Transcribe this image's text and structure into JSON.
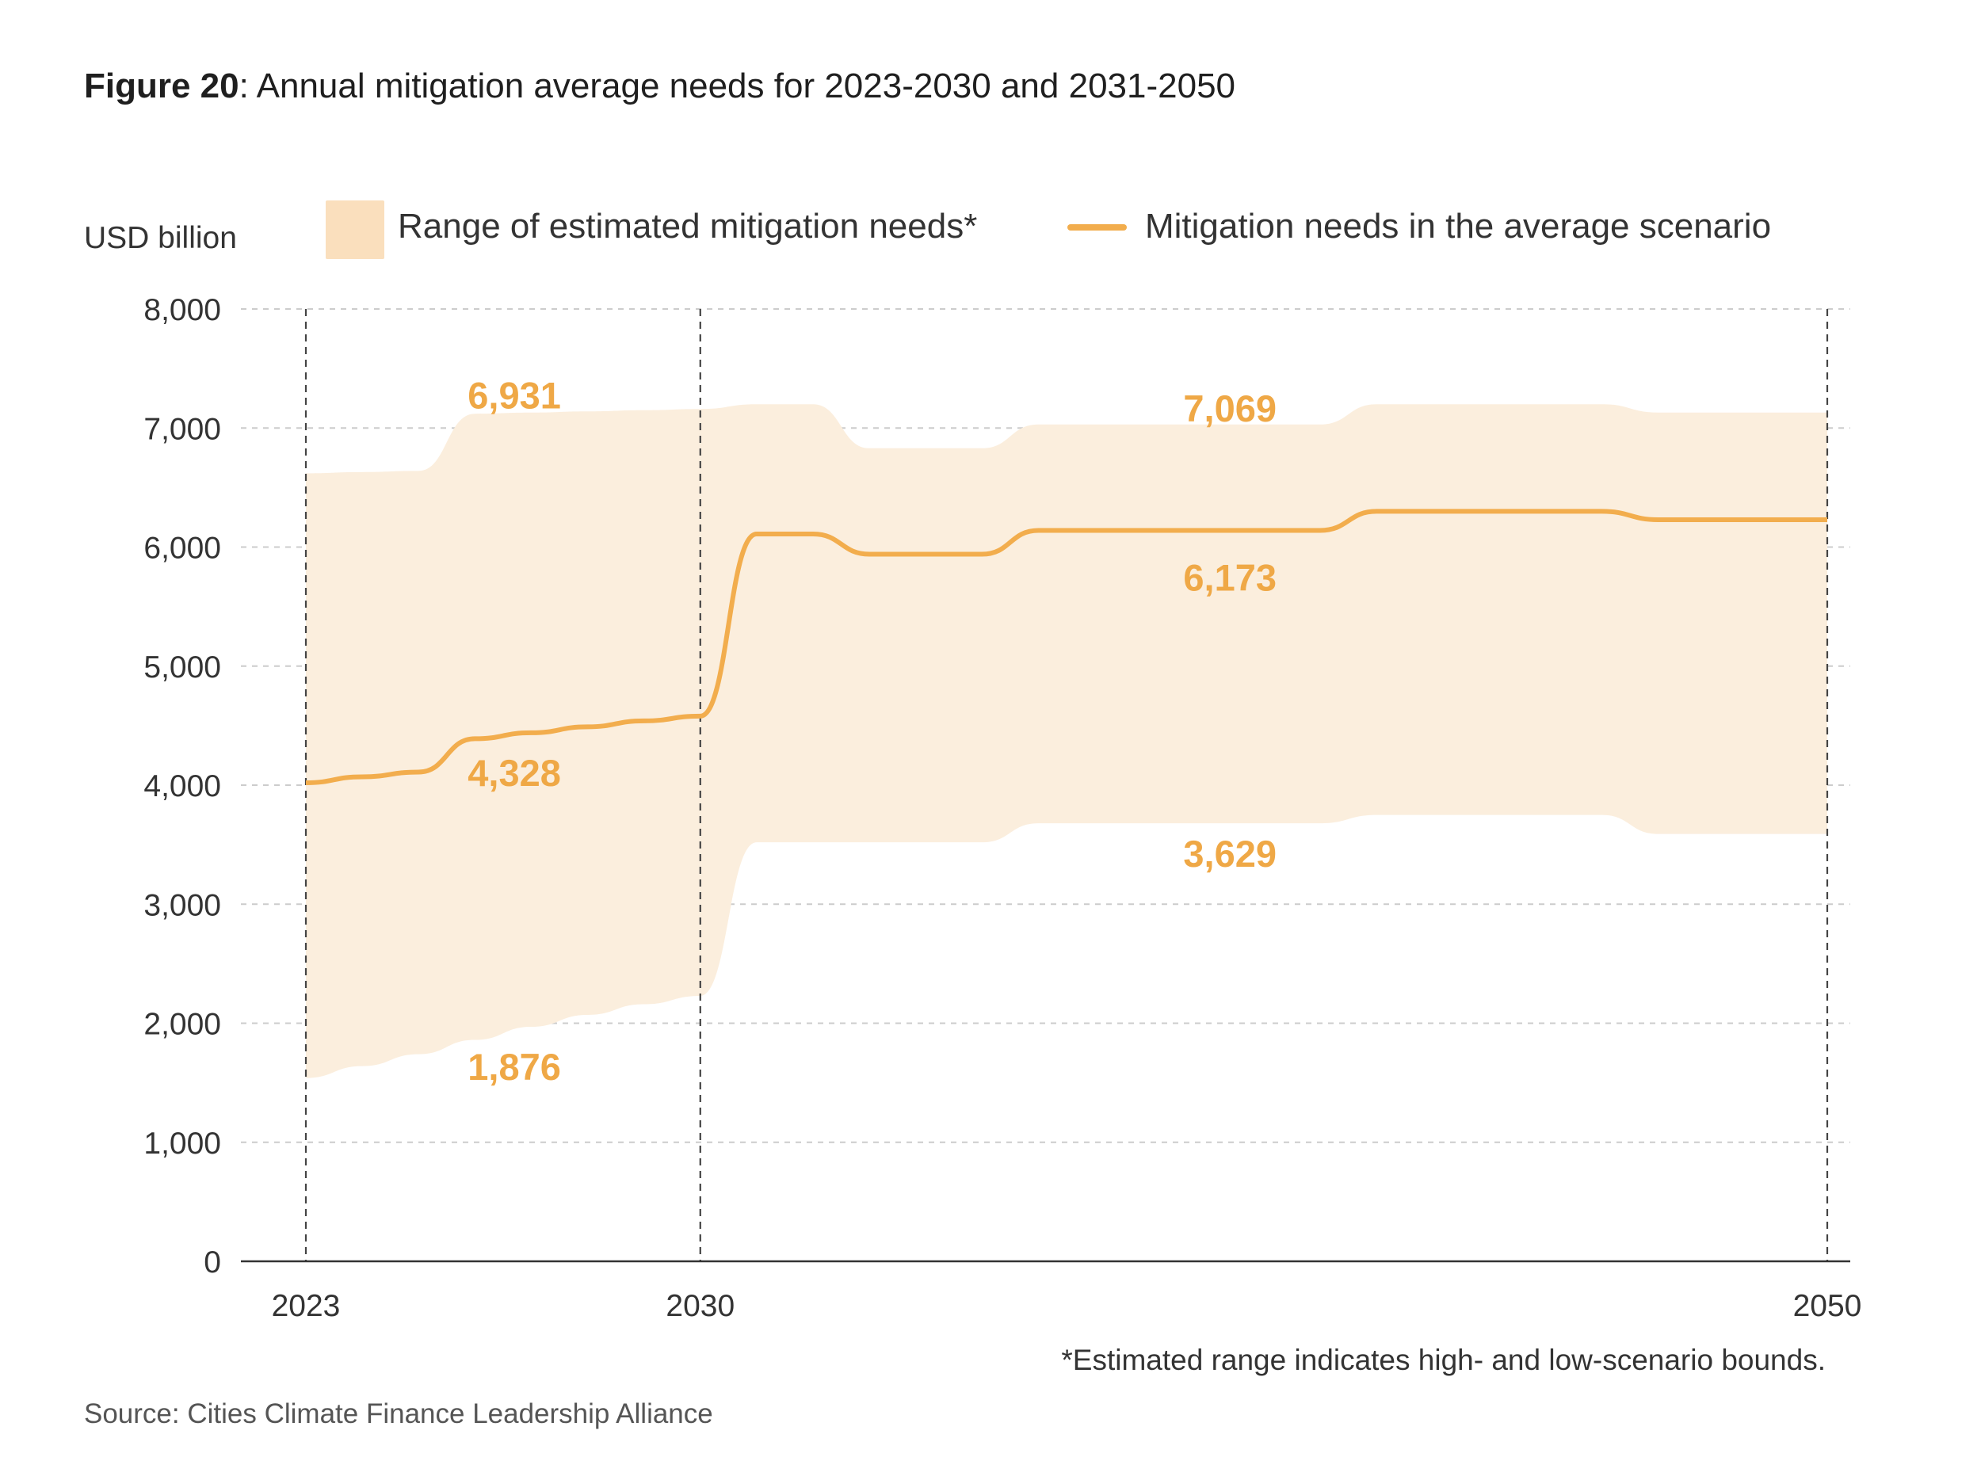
{
  "title": {
    "prefix": "Figure 20",
    "text": ": Annual mitigation average needs for 2023-2030 and 2031-2050"
  },
  "footnote": "*Estimated range indicates high- and low-scenario bounds.",
  "source": "Source: Cities Climate Finance Leadership Alliance",
  "colors": {
    "band": "#fbeedd",
    "legend_band": "#fadfbd",
    "line": "#f2ad4d",
    "label": "#efa846",
    "grid": "#cccccc",
    "axis": "#333333"
  },
  "chart_data": {
    "type": "area",
    "ylabel": "USD billion",
    "ylim": [
      0,
      8000
    ],
    "xlim": [
      2023,
      2050
    ],
    "y_ticks": [
      {
        "value": 0,
        "label": "0"
      },
      {
        "value": 1000,
        "label": "1,000"
      },
      {
        "value": 2000,
        "label": "2,000"
      },
      {
        "value": 3000,
        "label": "3,000"
      },
      {
        "value": 4000,
        "label": "4,000"
      },
      {
        "value": 5000,
        "label": "5,000"
      },
      {
        "value": 6000,
        "label": "6,000"
      },
      {
        "value": 7000,
        "label": "7,000"
      },
      {
        "value": 8000,
        "label": "8,000"
      }
    ],
    "x_ticks": [
      {
        "value": 2023,
        "label": "2023"
      },
      {
        "value": 2030,
        "label": "2030"
      },
      {
        "value": 2050,
        "label": "2050"
      }
    ],
    "grid": true,
    "legend": {
      "placement": "top",
      "band_label": "Range of estimated mitigation needs*",
      "line_label": "Mitigation needs in the average scenario"
    },
    "series": [
      {
        "name": "Range of estimated mitigation needs*",
        "kind": "band",
        "x": [
          2023,
          2024,
          2025,
          2026,
          2027,
          2028,
          2029,
          2030,
          2031,
          2032,
          2033,
          2034,
          2035,
          2036,
          2037,
          2038,
          2039,
          2040,
          2041,
          2042,
          2043,
          2044,
          2045,
          2046,
          2047,
          2048,
          2049,
          2050
        ],
        "high": [
          6620,
          6630,
          6640,
          7120,
          7130,
          7140,
          7150,
          7160,
          7200,
          7200,
          6830,
          6830,
          6830,
          7030,
          7030,
          7030,
          7030,
          7030,
          7030,
          7200,
          7200,
          7200,
          7200,
          7200,
          7130,
          7130,
          7130,
          7130
        ],
        "low": [
          1540,
          1640,
          1740,
          1860,
          1970,
          2070,
          2160,
          2230,
          3520,
          3520,
          3520,
          3520,
          3520,
          3680,
          3680,
          3680,
          3680,
          3680,
          3680,
          3750,
          3750,
          3750,
          3750,
          3750,
          3590,
          3590,
          3590,
          3590
        ]
      },
      {
        "name": "Mitigation needs in the average scenario",
        "kind": "line",
        "x": [
          2023,
          2024,
          2025,
          2026,
          2027,
          2028,
          2029,
          2030,
          2031,
          2032,
          2033,
          2034,
          2035,
          2036,
          2037,
          2038,
          2039,
          2040,
          2041,
          2042,
          2043,
          2044,
          2045,
          2046,
          2047,
          2048,
          2049,
          2050
        ],
        "values": [
          4020,
          4070,
          4110,
          4390,
          4440,
          4490,
          4540,
          4580,
          6110,
          6110,
          5940,
          5940,
          5940,
          6140,
          6140,
          6140,
          6140,
          6140,
          6140,
          6300,
          6300,
          6300,
          6300,
          6300,
          6230,
          6230,
          6230,
          6230
        ]
      }
    ],
    "annotations": [
      {
        "text": "6,931",
        "x": 2026.7,
        "y": 7270
      },
      {
        "text": "4,328",
        "x": 2026.7,
        "y": 4100
      },
      {
        "text": "1,876",
        "x": 2026.7,
        "y": 1630
      },
      {
        "text": "7,069",
        "x": 2039.4,
        "y": 7160
      },
      {
        "text": "6,173",
        "x": 2039.4,
        "y": 5740
      },
      {
        "text": "3,629",
        "x": 2039.4,
        "y": 3420
      }
    ],
    "period_lines": [
      2023,
      2030,
      2050
    ]
  }
}
